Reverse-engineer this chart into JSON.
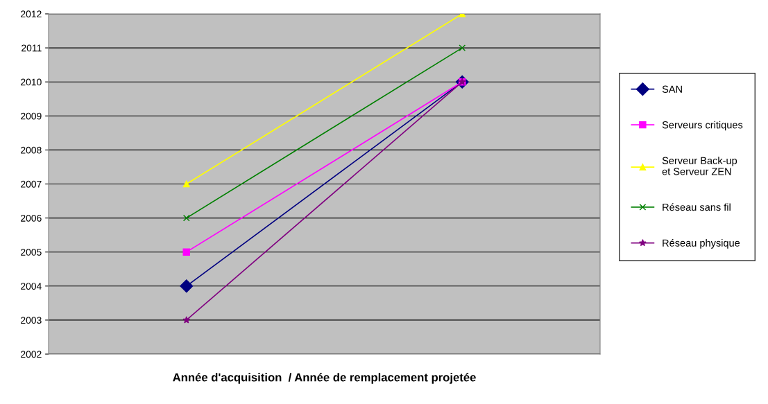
{
  "chart_data": {
    "type": "line",
    "xlabel": "Année d'acquisition  / Année de remplacement projetée",
    "categories": [
      null,
      null
    ],
    "series": [
      {
        "name": "SAN",
        "color": "#000080",
        "marker": "diamond",
        "values": [
          2004,
          2010
        ]
      },
      {
        "name": "Serveurs critiques",
        "color": "#ff00ff",
        "marker": "square",
        "values": [
          2005,
          2010
        ]
      },
      {
        "name": "Serveur Back-up\net Serveur ZEN",
        "color": "#ffff00",
        "marker": "triangle",
        "values": [
          2007,
          2012
        ]
      },
      {
        "name": "Réseau sans fil",
        "color": "#008000",
        "marker": "cross",
        "values": [
          2006,
          2011
        ]
      },
      {
        "name": "Réseau physique",
        "color": "#800080",
        "marker": "star",
        "values": [
          2003,
          2010
        ]
      }
    ],
    "ylim": [
      2002,
      2012
    ],
    "yticks": [
      2002,
      2003,
      2004,
      2005,
      2006,
      2007,
      2008,
      2009,
      2010,
      2011,
      2012
    ],
    "grid": "y",
    "legend": "right",
    "line_style": "solid"
  }
}
